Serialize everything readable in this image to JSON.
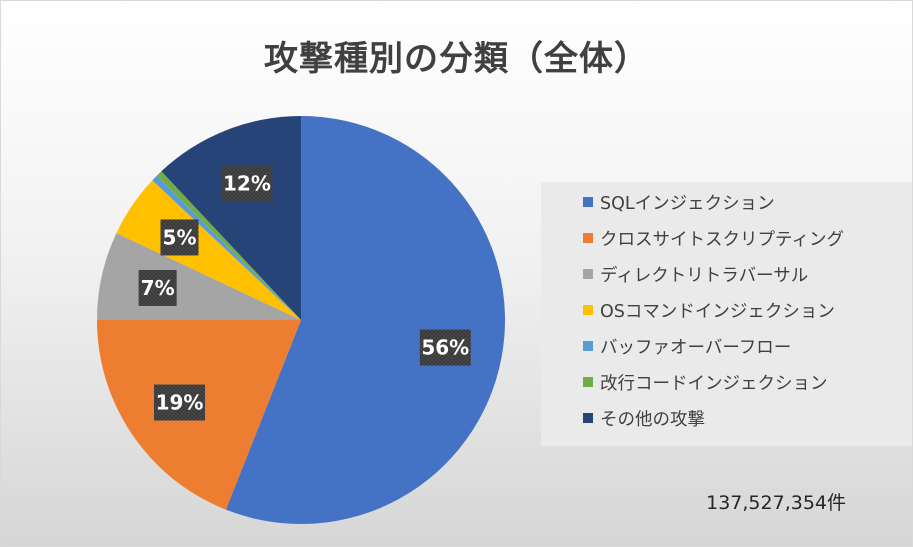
{
  "chart_data": {
    "type": "pie",
    "title": "攻撃種別の分類（全体）",
    "categories": [
      "SQLインジェクション",
      "クロスサイトスクリプティング",
      "ディレクトリトラバーサル",
      "OSコマンドインジェクション",
      "バッファオーバーフロー",
      "改行コードインジェクション",
      "その他の攻撃"
    ],
    "values": [
      56,
      19,
      7,
      5,
      0.5,
      0.5,
      12
    ],
    "data_labels": [
      "56%",
      "19%",
      "7%",
      "5%",
      "",
      "",
      "12%"
    ],
    "colors": [
      "#4472c4",
      "#ed7d31",
      "#a5a5a5",
      "#ffc000",
      "#5b9bd5",
      "#70ad47",
      "#264478"
    ],
    "start_angle": "12 o'clock",
    "direction": "clockwise",
    "legend_position": "right"
  },
  "footer": {
    "total_count": "137,527,354件"
  }
}
